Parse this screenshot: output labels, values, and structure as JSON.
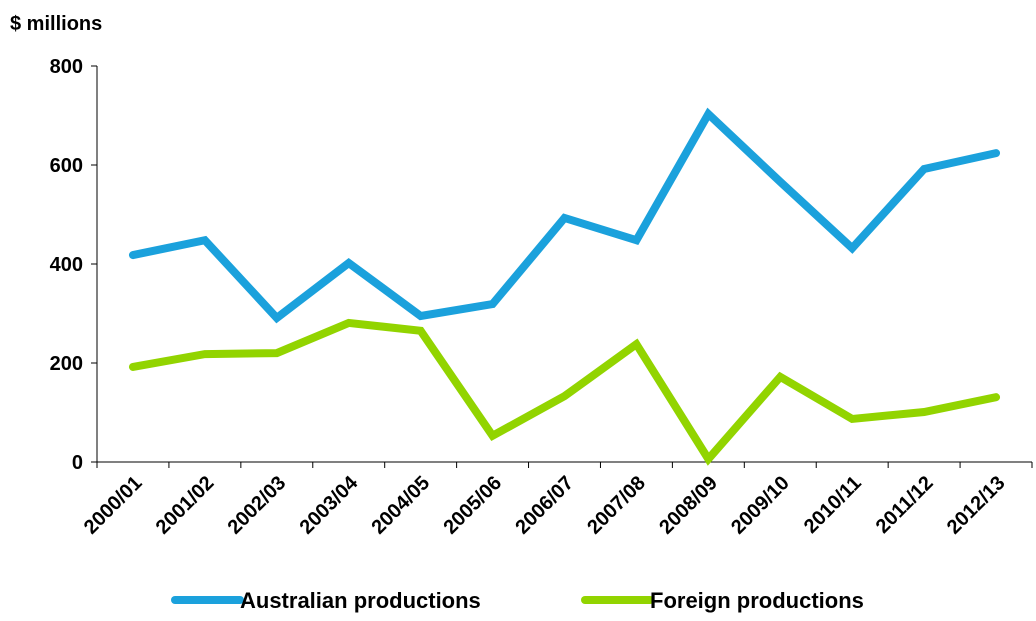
{
  "chart_data": {
    "type": "line",
    "y_axis_label": "$ millions",
    "categories": [
      "2000/01",
      "2001/02",
      "2002/03",
      "2003/04",
      "2004/05",
      "2005/06",
      "2006/07",
      "2007/08",
      "2008/09",
      "2009/10",
      "2010/11",
      "2011/12",
      "2012/13"
    ],
    "series": [
      {
        "name": "Australian productions",
        "color": "#1ba1dc",
        "values": [
          418,
          448,
          291,
          402,
          295,
          319,
          493,
          448,
          703,
          566,
          432,
          592,
          624
        ]
      },
      {
        "name": "Foreign productions",
        "color": "#92d400",
        "values": [
          192,
          218,
          220,
          281,
          265,
          53,
          133,
          238,
          6,
          172,
          87,
          101,
          131
        ]
      }
    ],
    "ylim": [
      0,
      800
    ],
    "yticks": [
      0,
      200,
      400,
      600,
      800
    ],
    "grid": false,
    "legend": "bottom"
  }
}
